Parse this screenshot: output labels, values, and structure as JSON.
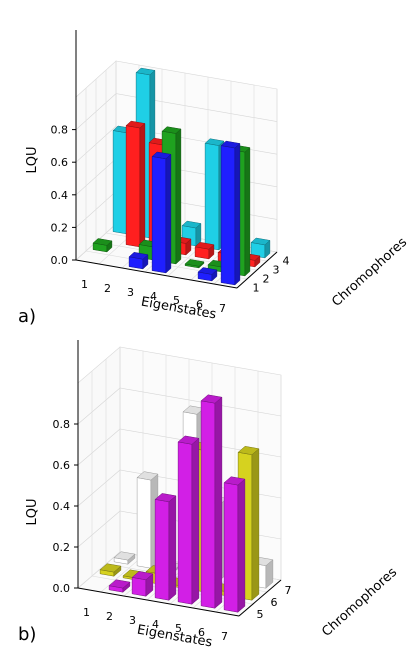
{
  "chart_data": [
    {
      "type": "bar3d",
      "panel_label": "a)",
      "xlabel": "Eigenstates",
      "ylabel": "LQU",
      "zlabel": "Chromophores",
      "x_ticks": [
        "1",
        "2",
        "3",
        "4",
        "5",
        "6",
        "7"
      ],
      "y_ticks": [
        "0.0",
        "0.2",
        "0.4",
        "0.6",
        "0.8"
      ],
      "z_ticks": [
        "1",
        "2",
        "3",
        "4"
      ],
      "ylim": [
        0,
        1.0
      ],
      "series": [
        {
          "chromophore": "1",
          "color": "#1f1fff",
          "values": [
            0.0,
            0.0,
            0.06,
            0.7,
            0.0,
            0.04,
            0.84
          ]
        },
        {
          "chromophore": "2",
          "color": "#1fa21f",
          "values": [
            0.04,
            0.0,
            0.08,
            0.8,
            0.01,
            0.03,
            0.76
          ]
        },
        {
          "chromophore": "3",
          "color": "#ff1f1f",
          "values": [
            0.0,
            0.73,
            0.65,
            0.07,
            0.06,
            0.05,
            0.04
          ]
        },
        {
          "chromophore": "4",
          "color": "#1fcfe6",
          "values": [
            0.62,
            1.0,
            0.01,
            0.11,
            0.64,
            0.03,
            0.08
          ]
        }
      ]
    },
    {
      "type": "bar3d",
      "panel_label": "b)",
      "xlabel": "Eigenstates",
      "ylabel": "LQU",
      "zlabel": "Chromophores",
      "x_ticks": [
        "1",
        "2",
        "3",
        "4",
        "5",
        "6",
        "7"
      ],
      "y_ticks": [
        "0.0",
        "0.2",
        "0.4",
        "0.6",
        "0.8"
      ],
      "z_ticks": [
        "5",
        "6",
        "7"
      ],
      "ylim": [
        0,
        1.0
      ],
      "series": [
        {
          "chromophore": "5",
          "color": "#d21fe6",
          "values": [
            0.0,
            0.02,
            0.08,
            0.48,
            0.78,
            1.0,
            0.62
          ]
        },
        {
          "chromophore": "6",
          "color": "#d6d21f",
          "values": [
            0.02,
            0.01,
            0.05,
            0.01,
            0.69,
            0.02,
            0.71
          ]
        },
        {
          "chromophore": "7",
          "color": "#ffffff",
          "values": [
            0.02,
            0.43,
            0.01,
            0.79,
            0.37,
            0.01,
            0.11
          ]
        }
      ]
    }
  ]
}
